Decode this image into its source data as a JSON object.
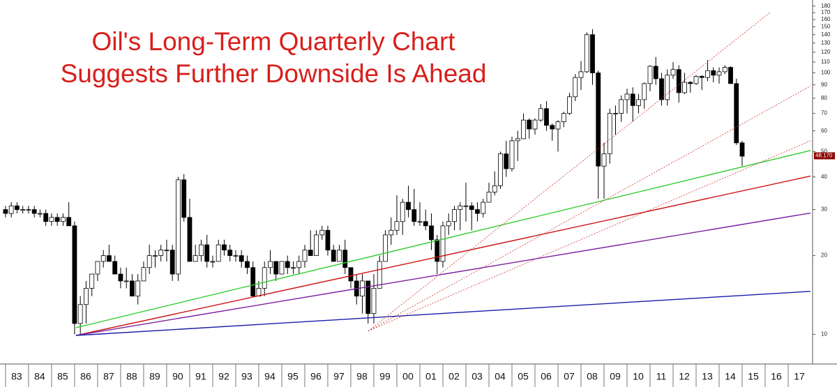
{
  "chart_data": {
    "type": "candlestick",
    "title_lines": [
      "Oil's Long-Term Quarterly Chart",
      "Suggests Further Downside Is Ahead"
    ],
    "xlim": [
      1982.76,
      2018.06
    ],
    "xticks": [
      {
        "value": 1983,
        "label": "83"
      },
      {
        "value": 1984,
        "label": "84"
      },
      {
        "value": 1985,
        "label": "85"
      },
      {
        "value": 1986,
        "label": "86"
      },
      {
        "value": 1987,
        "label": "87"
      },
      {
        "value": 1988,
        "label": "88"
      },
      {
        "value": 1989,
        "label": "89"
      },
      {
        "value": 1990,
        "label": "90"
      },
      {
        "value": 1991,
        "label": "91"
      },
      {
        "value": 1992,
        "label": "92"
      },
      {
        "value": 1993,
        "label": "93"
      },
      {
        "value": 1994,
        "label": "94"
      },
      {
        "value": 1995,
        "label": "95"
      },
      {
        "value": 1996,
        "label": "96"
      },
      {
        "value": 1997,
        "label": "97"
      },
      {
        "value": 1998,
        "label": "98"
      },
      {
        "value": 1999,
        "label": "99"
      },
      {
        "value": 2000,
        "label": "00"
      },
      {
        "value": 2001,
        "label": "01"
      },
      {
        "value": 2002,
        "label": "02"
      },
      {
        "value": 2003,
        "label": "03"
      },
      {
        "value": 2004,
        "label": "04"
      },
      {
        "value": 2005,
        "label": "05"
      },
      {
        "value": 2006,
        "label": "06"
      },
      {
        "value": 2007,
        "label": "07"
      },
      {
        "value": 2008,
        "label": "08"
      },
      {
        "value": 2009,
        "label": "09"
      },
      {
        "value": 2010,
        "label": "10"
      },
      {
        "value": 2011,
        "label": "11"
      },
      {
        "value": 2012,
        "label": "12"
      },
      {
        "value": 2013,
        "label": "13"
      },
      {
        "value": 2014,
        "label": "14"
      },
      {
        "value": 2015,
        "label": "15"
      },
      {
        "value": 2016,
        "label": "16"
      },
      {
        "value": 2017,
        "label": "17"
      }
    ],
    "ylim": [
      7.7,
      190
    ],
    "log_scale": true,
    "yticks": [
      10,
      20,
      30,
      40,
      50,
      60,
      70,
      80,
      90,
      100,
      110,
      120,
      130,
      140,
      150,
      160,
      170,
      180
    ],
    "last_price": {
      "value": 48.17,
      "label": "48.170"
    },
    "x": [
      1983,
      1983.25,
      1983.5,
      1983.75,
      1984,
      1984.25,
      1984.5,
      1984.75,
      1985,
      1985.25,
      1985.5,
      1985.75,
      1986,
      1986.25,
      1986.5,
      1986.75,
      1987,
      1987.25,
      1987.5,
      1987.75,
      1988,
      1988.25,
      1988.5,
      1988.75,
      1989,
      1989.25,
      1989.5,
      1989.75,
      1990,
      1990.25,
      1990.5,
      1990.75,
      1991,
      1991.25,
      1991.5,
      1991.75,
      1992,
      1992.25,
      1992.5,
      1992.75,
      1993,
      1993.25,
      1993.5,
      1993.75,
      1994,
      1994.25,
      1994.5,
      1994.75,
      1995,
      1995.25,
      1995.5,
      1995.75,
      1996,
      1996.25,
      1996.5,
      1996.75,
      1997,
      1997.25,
      1997.5,
      1997.75,
      1998,
      1998.25,
      1998.5,
      1998.75,
      1999,
      1999.25,
      1999.5,
      1999.75,
      2000,
      2000.25,
      2000.5,
      2000.75,
      2001,
      2001.25,
      2001.5,
      2001.75,
      2002,
      2002.25,
      2002.5,
      2002.75,
      2003,
      2003.25,
      2003.5,
      2003.75,
      2004,
      2004.25,
      2004.5,
      2004.75,
      2005,
      2005.25,
      2005.5,
      2005.75,
      2006,
      2006.25,
      2006.5,
      2006.75,
      2007,
      2007.25,
      2007.5,
      2007.75,
      2008,
      2008.25,
      2008.5,
      2008.75,
      2009,
      2009.25,
      2009.5,
      2009.75,
      2010,
      2010.25,
      2010.5,
      2010.75,
      2011,
      2011.25,
      2011.5,
      2011.75,
      2012,
      2012.25,
      2012.5,
      2012.75,
      2013,
      2013.25,
      2013.5,
      2013.75,
      2014,
      2014.25,
      2014.5,
      2014.75,
      2015
    ],
    "ohlc": [
      [
        30,
        31,
        28,
        29
      ],
      [
        29,
        32,
        28,
        31
      ],
      [
        31,
        32,
        29,
        30
      ],
      [
        30,
        31,
        29,
        30
      ],
      [
        30,
        31,
        29,
        30
      ],
      [
        30,
        31,
        28,
        29
      ],
      [
        29,
        30,
        28,
        29
      ],
      [
        29,
        30,
        26,
        27
      ],
      [
        27,
        29,
        26,
        28
      ],
      [
        28,
        29,
        26,
        27
      ],
      [
        27,
        29,
        26,
        28
      ],
      [
        28,
        32,
        26,
        26
      ],
      [
        26,
        27,
        10,
        11
      ],
      [
        11,
        14,
        10,
        13
      ],
      [
        13,
        16,
        11,
        15
      ],
      [
        15,
        17,
        14,
        17
      ],
      [
        17,
        19,
        16,
        19
      ],
      [
        19,
        21,
        18,
        20
      ],
      [
        20,
        22,
        19,
        19
      ],
      [
        19,
        20,
        17,
        17
      ],
      [
        17,
        18,
        15,
        16
      ],
      [
        16,
        18,
        15,
        16
      ],
      [
        16,
        17,
        14,
        14
      ],
      [
        14,
        17,
        13,
        16
      ],
      [
        16,
        19,
        16,
        18
      ],
      [
        18,
        22,
        17,
        20
      ],
      [
        20,
        21,
        18,
        20
      ],
      [
        20,
        22,
        19,
        21
      ],
      [
        21,
        23,
        19,
        21
      ],
      [
        21,
        22,
        16,
        17
      ],
      [
        17,
        40,
        16,
        39
      ],
      [
        39,
        41,
        27,
        28
      ],
      [
        28,
        33,
        19,
        19
      ],
      [
        19,
        22,
        19,
        20
      ],
      [
        20,
        23,
        19,
        22
      ],
      [
        22,
        24,
        18,
        19
      ],
      [
        19,
        20,
        18,
        19
      ],
      [
        19,
        23,
        19,
        22
      ],
      [
        22,
        23,
        20,
        21
      ],
      [
        21,
        22,
        19,
        20
      ],
      [
        20,
        21,
        19,
        20
      ],
      [
        20,
        21,
        18,
        19
      ],
      [
        19,
        20,
        17,
        18
      ],
      [
        18,
        19,
        14,
        14
      ],
      [
        14,
        16,
        14,
        15
      ],
      [
        15,
        19,
        14,
        18
      ],
      [
        18,
        21,
        17,
        19
      ],
      [
        19,
        19,
        16,
        17
      ],
      [
        17,
        19,
        17,
        19
      ],
      [
        19,
        20,
        17,
        18
      ],
      [
        18,
        19,
        17,
        18
      ],
      [
        18,
        20,
        17,
        19
      ],
      [
        19,
        22,
        18,
        21
      ],
      [
        21,
        25,
        20,
        20
      ],
      [
        20,
        25,
        20,
        24
      ],
      [
        24,
        26,
        23,
        25
      ],
      [
        25,
        26,
        20,
        21
      ],
      [
        21,
        22,
        19,
        19
      ],
      [
        19,
        22,
        19,
        21
      ],
      [
        21,
        23,
        17,
        18
      ],
      [
        18,
        18,
        15,
        16
      ],
      [
        16,
        17,
        13,
        14
      ],
      [
        14,
        17,
        12,
        16
      ],
      [
        16,
        16,
        11,
        12
      ],
      [
        12,
        17,
        11,
        15
      ],
      [
        15,
        20,
        15,
        19
      ],
      [
        19,
        25,
        19,
        24
      ],
      [
        24,
        28,
        22,
        25
      ],
      [
        25,
        34,
        24,
        27
      ],
      [
        27,
        33,
        24,
        32
      ],
      [
        32,
        37,
        28,
        30
      ],
      [
        30,
        36,
        26,
        27
      ],
      [
        27,
        32,
        26,
        27
      ],
      [
        27,
        30,
        25,
        26
      ],
      [
        26,
        29,
        21,
        23
      ],
      [
        23,
        24,
        17,
        19
      ],
      [
        19,
        27,
        18,
        26
      ],
      [
        26,
        29,
        24,
        27
      ],
      [
        27,
        31,
        25,
        30
      ],
      [
        30,
        32,
        25,
        31
      ],
      [
        31,
        38,
        27,
        31
      ],
      [
        31,
        32,
        25,
        30
      ],
      [
        30,
        32,
        27,
        29
      ],
      [
        29,
        33,
        28,
        32
      ],
      [
        32,
        38,
        32,
        35
      ],
      [
        35,
        42,
        34,
        37
      ],
      [
        37,
        50,
        36,
        49
      ],
      [
        49,
        55,
        40,
        43
      ],
      [
        43,
        57,
        42,
        55
      ],
      [
        55,
        60,
        46,
        56
      ],
      [
        56,
        70,
        56,
        66
      ],
      [
        66,
        67,
        56,
        61
      ],
      [
        61,
        67,
        58,
        66
      ],
      [
        66,
        76,
        65,
        73
      ],
      [
        73,
        78,
        60,
        63
      ],
      [
        63,
        64,
        55,
        61
      ],
      [
        61,
        66,
        50,
        65
      ],
      [
        65,
        71,
        62,
        70
      ],
      [
        70,
        84,
        69,
        81
      ],
      [
        81,
        99,
        78,
        96
      ],
      [
        96,
        111,
        86,
        101
      ],
      [
        101,
        143,
        100,
        140
      ],
      [
        140,
        147,
        90,
        100
      ],
      [
        100,
        102,
        33,
        44
      ],
      [
        44,
        54,
        33,
        49
      ],
      [
        49,
        73,
        45,
        70
      ],
      [
        70,
        75,
        58,
        70
      ],
      [
        70,
        82,
        65,
        79
      ],
      [
        79,
        87,
        70,
        83
      ],
      [
        83,
        88,
        65,
        75
      ],
      [
        75,
        83,
        70,
        79
      ],
      [
        79,
        92,
        73,
        91
      ],
      [
        91,
        107,
        85,
        106
      ],
      [
        106,
        115,
        90,
        95
      ],
      [
        95,
        100,
        75,
        79
      ],
      [
        79,
        103,
        75,
        98
      ],
      [
        98,
        110,
        95,
        103
      ],
      [
        103,
        107,
        77,
        84
      ],
      [
        84,
        100,
        83,
        92
      ],
      [
        92,
        93,
        84,
        91
      ],
      [
        91,
        98,
        90,
        97
      ],
      [
        97,
        98,
        86,
        96
      ],
      [
        96,
        112,
        93,
        102
      ],
      [
        102,
        105,
        92,
        98
      ],
      [
        98,
        105,
        91,
        101
      ],
      [
        101,
        107,
        99,
        105
      ],
      [
        105,
        106,
        91,
        91
      ],
      [
        91,
        95,
        53,
        54
      ],
      [
        54,
        55,
        44,
        48
      ]
    ],
    "trendlines": [
      {
        "x": [
          1986.06,
          2017.97
        ],
        "y": [
          10.6,
          50.5
        ],
        "color": "#33cc33",
        "dashed": false
      },
      {
        "x": [
          1986.06,
          2017.97
        ],
        "y": [
          9.9,
          40.3
        ],
        "color": "#cc1111",
        "dashed": false
      },
      {
        "x": [
          1986.06,
          2017.97
        ],
        "y": [
          9.9,
          29.1
        ],
        "color": "#7a1fa0",
        "dashed": false
      },
      {
        "x": [
          1986.06,
          2017.97
        ],
        "y": [
          9.9,
          14.6
        ],
        "color": "#1a1aaa",
        "dashed": false
      },
      {
        "x": [
          1998.76,
          2016.24
        ],
        "y": [
          10.3,
          171
        ],
        "color": "#cc3333",
        "dashed": true
      },
      {
        "x": [
          1998.76,
          2017.97
        ],
        "y": [
          10.3,
          89
        ],
        "color": "#cc3333",
        "dashed": true
      },
      {
        "x": [
          1998.76,
          2017.97
        ],
        "y": [
          10.3,
          55
        ],
        "color": "#cc3333",
        "dashed": true
      }
    ]
  }
}
